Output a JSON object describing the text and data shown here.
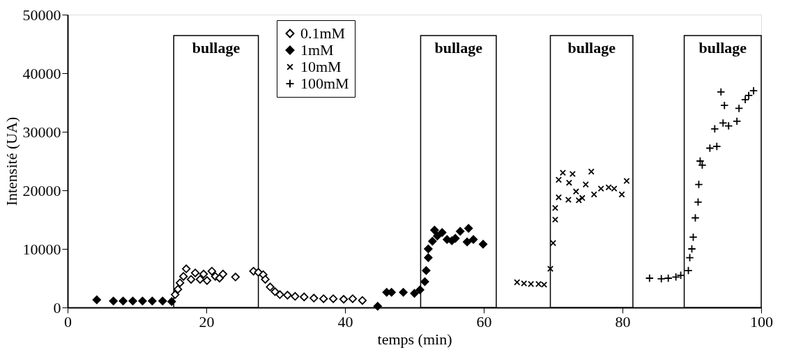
{
  "chart_data": {
    "type": "scatter",
    "xlabel": "temps (min)",
    "ylabel": "Intensité (UA)",
    "xlim": [
      0,
      100
    ],
    "xticks": [
      0,
      20,
      40,
      60,
      80,
      100
    ],
    "ylim": [
      0,
      50000
    ],
    "yticks": [
      0,
      10000,
      20000,
      30000,
      40000,
      50000
    ],
    "grid": false,
    "legend": "top",
    "series": [
      {
        "name": "0.1mM",
        "color": "#000000",
        "marker": "diamond-open",
        "x": [
          15.5,
          15.9,
          16.2,
          16.7,
          17.1,
          17.8,
          18.4,
          19.1,
          19.6,
          20.1,
          20.8,
          21.3,
          21.9,
          22.4,
          24.2,
          26.8,
          27.5,
          28.2,
          28.5,
          29.2,
          29.9,
          30.6,
          31.7,
          32.8,
          34.1,
          35.5,
          36.9,
          38.3,
          39.8,
          41.1,
          42.5
        ],
        "values": [
          2200,
          3100,
          4200,
          5300,
          6600,
          4800,
          5900,
          4800,
          5700,
          4600,
          6200,
          5300,
          5000,
          5700,
          5200,
          6200,
          6000,
          5600,
          4800,
          3500,
          2700,
          2200,
          2100,
          1900,
          1800,
          1600,
          1500,
          1500,
          1400,
          1500,
          1200
        ]
      },
      {
        "name": "1mM",
        "color": "#000000",
        "marker": "diamond",
        "x": [
          4.2,
          6.6,
          8.0,
          9.4,
          10.8,
          12.2,
          13.7,
          15.0,
          44.7,
          46.0,
          46.7,
          48.4,
          50.0,
          50.8,
          51.5,
          51.7,
          52.0,
          52.0,
          52.6,
          52.9,
          53.3,
          54.0,
          54.7,
          55.4,
          55.9,
          56.6,
          57.6,
          57.8,
          58.5,
          59.9
        ],
        "values": [
          1300,
          1100,
          1100,
          1100,
          1100,
          1100,
          1100,
          1000,
          200,
          2600,
          2600,
          2600,
          2400,
          3000,
          4400,
          6300,
          8500,
          10000,
          11300,
          13200,
          12200,
          12800,
          11600,
          11400,
          11800,
          13000,
          11200,
          13500,
          11600,
          10800
        ]
      },
      {
        "name": "10mM",
        "color": "#000000",
        "marker": "x",
        "x": [
          64.8,
          65.8,
          66.8,
          67.9,
          68.7,
          69.6,
          70.0,
          70.3,
          70.3,
          70.8,
          70.8,
          71.4,
          72.2,
          72.3,
          72.8,
          73.3,
          73.7,
          74.2,
          74.7,
          75.5,
          75.9,
          76.9,
          78.0,
          78.8,
          79.9,
          80.6
        ],
        "values": [
          4300,
          4100,
          4000,
          4000,
          3900,
          6600,
          11000,
          15000,
          17000,
          18800,
          21800,
          23000,
          18400,
          21300,
          22800,
          19800,
          18300,
          18700,
          21000,
          23200,
          19300,
          20300,
          20500,
          20300,
          19300,
          21600
        ]
      },
      {
        "name": "100mM",
        "color": "#000000",
        "marker": "cross",
        "x": [
          83.9,
          85.6,
          86.6,
          87.7,
          88.4,
          89.5,
          89.7,
          90.0,
          90.2,
          90.5,
          90.9,
          91.0,
          91.2,
          91.5,
          92.6,
          93.3,
          93.6,
          94.2,
          94.5,
          94.7,
          95.3,
          96.5,
          96.8,
          97.7,
          98.2,
          98.9
        ],
        "values": [
          5000,
          4900,
          5000,
          5200,
          5500,
          6300,
          8500,
          10000,
          12000,
          15300,
          18000,
          21000,
          25000,
          24300,
          27200,
          30500,
          27500,
          36800,
          31500,
          34500,
          31000,
          31800,
          34000,
          35500,
          36200,
          37000
        ]
      }
    ],
    "bands": [
      {
        "axis": "x",
        "from": 15.3,
        "to": 27.5,
        "label": "bullage"
      },
      {
        "axis": "x",
        "from": 50.9,
        "to": 61.8,
        "label": "bullage"
      },
      {
        "axis": "x",
        "from": 69.6,
        "to": 81.5,
        "label": "bullage"
      },
      {
        "axis": "x",
        "from": 88.9,
        "to": 100,
        "label": "bullage"
      }
    ]
  }
}
